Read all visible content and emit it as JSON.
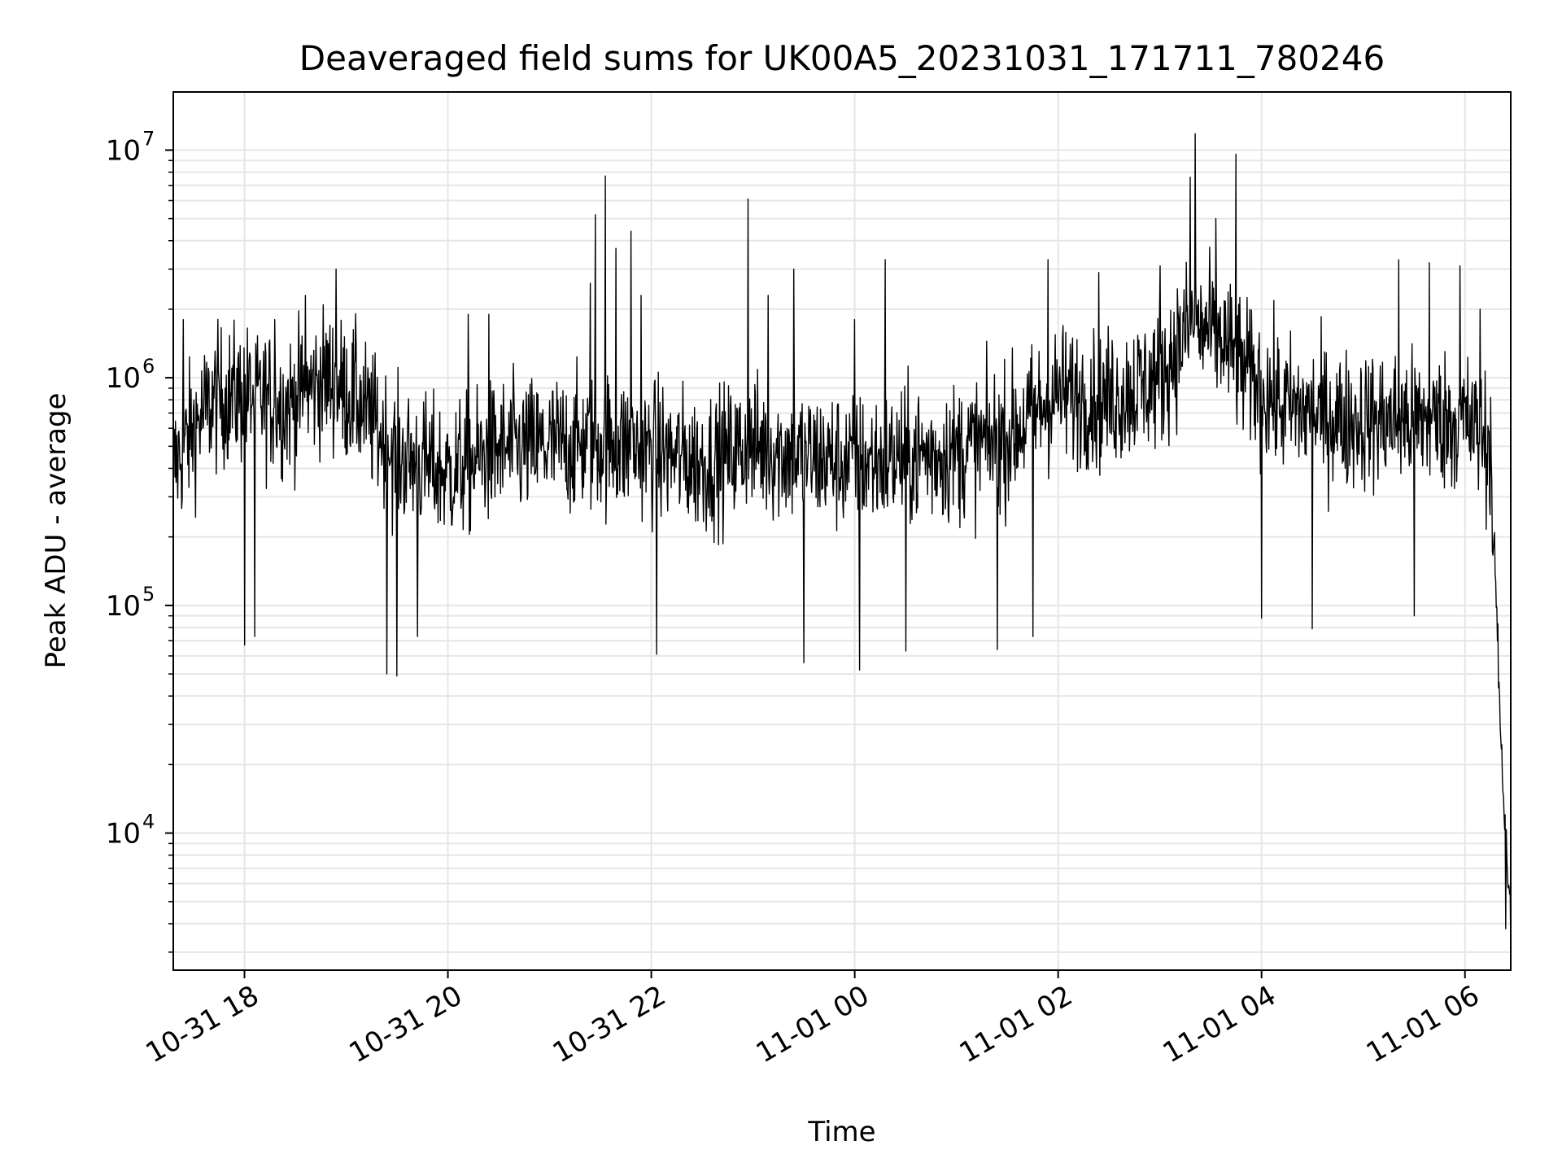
{
  "chart_data": {
    "type": "line",
    "title": "Deaveraged field sums for UK00A5_20231031_171711_780246",
    "xlabel": "Time",
    "ylabel": "Peak ADU - average",
    "yscale": "log",
    "ylim": [
      2500,
      18000000
    ],
    "xlim_hours": [
      -6.7,
      6.45
    ],
    "x_ticks": [
      {
        "label": "10-31 18",
        "hour": -6
      },
      {
        "label": "10-31 20",
        "hour": -4
      },
      {
        "label": "10-31 22",
        "hour": -2
      },
      {
        "label": "11-01 00",
        "hour": 0
      },
      {
        "label": "11-01 02",
        "hour": 2
      },
      {
        "label": "11-01 04",
        "hour": 4
      },
      {
        "label": "11-01 06",
        "hour": 6
      }
    ],
    "y_ticks": [
      {
        "base": "10",
        "exp": "4",
        "value": 10000
      },
      {
        "base": "10",
        "exp": "5",
        "value": 100000
      },
      {
        "base": "10",
        "exp": "6",
        "value": 1000000
      },
      {
        "base": "10",
        "exp": "7",
        "value": 10000000
      }
    ],
    "grid": true,
    "line_color": "#000000",
    "grid_color": "#e6e6e6",
    "series": [
      {
        "name": "deaveraged sums",
        "description": "noisy time series of ~thousands of samples; baseline envelope (hour, typical value) below",
        "baseline": [
          [
            -6.7,
            400000
          ],
          [
            -6.5,
            600000
          ],
          [
            -6.3,
            800000
          ],
          [
            -6.0,
            850000
          ],
          [
            -5.6,
            750000
          ],
          [
            -5.2,
            1000000
          ],
          [
            -4.9,
            800000
          ],
          [
            -4.5,
            450000
          ],
          [
            -4.0,
            380000
          ],
          [
            -3.5,
            480000
          ],
          [
            -3.0,
            500000
          ],
          [
            -2.5,
            520000
          ],
          [
            -2.0,
            480000
          ],
          [
            -1.5,
            420000
          ],
          [
            -1.0,
            500000
          ],
          [
            -0.5,
            450000
          ],
          [
            0.0,
            420000
          ],
          [
            0.5,
            450000
          ],
          [
            1.0,
            470000
          ],
          [
            1.5,
            550000
          ],
          [
            2.0,
            850000
          ],
          [
            2.5,
            800000
          ],
          [
            3.0,
            1000000
          ],
          [
            3.3,
            1700000
          ],
          [
            3.6,
            1500000
          ],
          [
            3.8,
            1100000
          ],
          [
            4.2,
            750000
          ],
          [
            4.8,
            650000
          ],
          [
            5.5,
            650000
          ],
          [
            6.0,
            650000
          ],
          [
            6.25,
            500000
          ],
          [
            6.3,
            120000
          ],
          [
            6.35,
            30000
          ],
          [
            6.4,
            10000
          ],
          [
            6.45,
            4000
          ]
        ],
        "spikes": [
          [
            -6.6,
            1800000
          ],
          [
            -5.7,
            1800000
          ],
          [
            -5.4,
            2300000
          ],
          [
            -5.1,
            3000000
          ],
          [
            -4.9,
            1400000
          ],
          [
            -3.8,
            1900000
          ],
          [
            -3.6,
            1900000
          ],
          [
            -2.6,
            2600000
          ],
          [
            -2.55,
            5200000
          ],
          [
            -2.45,
            7700000
          ],
          [
            -2.35,
            3700000
          ],
          [
            -2.2,
            4400000
          ],
          [
            -2.1,
            2300000
          ],
          [
            -1.05,
            6100000
          ],
          [
            -0.85,
            2300000
          ],
          [
            -0.6,
            3000000
          ],
          [
            0.0,
            1800000
          ],
          [
            0.3,
            3300000
          ],
          [
            1.9,
            3300000
          ],
          [
            2.4,
            2900000
          ],
          [
            3.0,
            3100000
          ],
          [
            3.3,
            7600000
          ],
          [
            3.35,
            11800000
          ],
          [
            3.55,
            5000000
          ],
          [
            3.75,
            9600000
          ],
          [
            4.0,
            1900000
          ],
          [
            5.35,
            3300000
          ],
          [
            5.65,
            3200000
          ],
          [
            5.95,
            3100000
          ],
          [
            6.15,
            2000000
          ]
        ],
        "dips": [
          [
            -6.0,
            67000
          ],
          [
            -5.9,
            73000
          ],
          [
            -4.6,
            50000
          ],
          [
            -4.5,
            49000
          ],
          [
            -4.3,
            73000
          ],
          [
            -1.95,
            61000
          ],
          [
            -0.5,
            56000
          ],
          [
            0.05,
            52000
          ],
          [
            0.5,
            63000
          ],
          [
            1.4,
            64000
          ],
          [
            1.75,
            73000
          ],
          [
            4.0,
            88000
          ],
          [
            4.5,
            79000
          ],
          [
            5.5,
            90000
          ],
          [
            6.4,
            3800
          ]
        ]
      }
    ]
  }
}
